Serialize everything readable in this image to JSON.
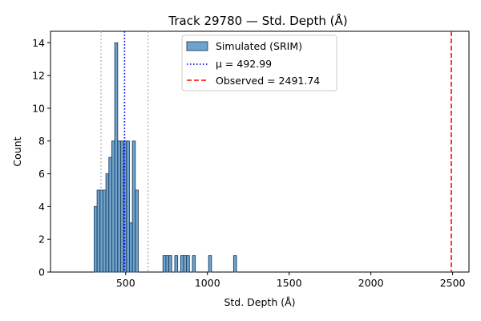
{
  "chart_data": {
    "type": "bar",
    "title": "Track 29780 — Std. Depth (Å)",
    "xlabel": "Std. Depth (Å)",
    "ylabel": "Count",
    "xlim": [
      40,
      2600
    ],
    "ylim": [
      0,
      14.7
    ],
    "xticks": [
      500,
      1000,
      1500,
      2000,
      2500
    ],
    "yticks": [
      0,
      2,
      4,
      6,
      8,
      10,
      12,
      14
    ],
    "grid": false,
    "legend_position": "top-center",
    "bins": [
      {
        "x0": 307,
        "x1": 325,
        "count": 4
      },
      {
        "x0": 325,
        "x1": 343,
        "count": 5
      },
      {
        "x0": 343,
        "x1": 361,
        "count": 5
      },
      {
        "x0": 361,
        "x1": 379,
        "count": 5
      },
      {
        "x0": 379,
        "x1": 397,
        "count": 6
      },
      {
        "x0": 397,
        "x1": 415,
        "count": 7
      },
      {
        "x0": 415,
        "x1": 433,
        "count": 8
      },
      {
        "x0": 433,
        "x1": 451,
        "count": 14
      },
      {
        "x0": 451,
        "x1": 469,
        "count": 8
      },
      {
        "x0": 469,
        "x1": 487,
        "count": 8
      },
      {
        "x0": 487,
        "x1": 505,
        "count": 8
      },
      {
        "x0": 505,
        "x1": 523,
        "count": 8
      },
      {
        "x0": 523,
        "x1": 541,
        "count": 3
      },
      {
        "x0": 541,
        "x1": 559,
        "count": 8
      },
      {
        "x0": 559,
        "x1": 577,
        "count": 5
      },
      {
        "x0": 728,
        "x1": 746,
        "count": 1
      },
      {
        "x0": 746,
        "x1": 764,
        "count": 1
      },
      {
        "x0": 764,
        "x1": 782,
        "count": 1
      },
      {
        "x0": 800,
        "x1": 818,
        "count": 1
      },
      {
        "x0": 836,
        "x1": 854,
        "count": 1
      },
      {
        "x0": 854,
        "x1": 872,
        "count": 1
      },
      {
        "x0": 872,
        "x1": 890,
        "count": 1
      },
      {
        "x0": 908,
        "x1": 926,
        "count": 1
      },
      {
        "x0": 1007,
        "x1": 1025,
        "count": 1
      },
      {
        "x0": 1160,
        "x1": 1178,
        "count": 1
      }
    ],
    "series": [
      {
        "name": "Simulated (SRIM)",
        "kind": "histogram",
        "color": "#6ea3cd",
        "edge_color": "#1f3f5f"
      },
      {
        "name": "μ = 492.99",
        "kind": "vline",
        "x": 492.99,
        "color": "#0000ff",
        "style": "dotted"
      },
      {
        "name": "Observed = 2491.74",
        "kind": "vline",
        "x": 2491.74,
        "color": "#ff0000",
        "style": "dashed"
      }
    ],
    "sigma_lines": {
      "x": [
        349,
        637
      ],
      "color": "#b0b0b0",
      "style": "dotted"
    }
  }
}
